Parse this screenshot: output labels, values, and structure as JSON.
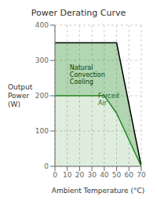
{
  "chart_data": {
    "type": "area",
    "title": "Power Derating Curve",
    "x_label": "Ambient Temperature (°C)",
    "y_label": "Output\nPower\n(W)",
    "x": [
      0,
      10,
      20,
      30,
      40,
      50,
      60,
      70
    ],
    "series": [
      {
        "color": "#000000",
        "values": [
          350,
          350,
          350,
          350,
          350,
          350,
          175,
          0
        ]
      },
      {
        "color": "#228822",
        "values": [
          200,
          200,
          200,
          200,
          200,
          150,
          75,
          0
        ]
      }
    ],
    "xlim": [
      0,
      70
    ],
    "xticks": [
      0,
      10,
      20,
      30,
      40,
      50,
      60,
      70
    ],
    "ylim": [
      0,
      400
    ],
    "yticks": [
      0,
      100,
      200,
      300,
      400
    ],
    "grid": true,
    "annotations": [
      {
        "text": "Natural\nConvection\nCooling",
        "x": 12,
        "y": 290,
        "color": "#004400"
      },
      {
        "text": "Forced\nAir",
        "x": 35,
        "y": 210,
        "color": "#226622"
      }
    ]
  }
}
